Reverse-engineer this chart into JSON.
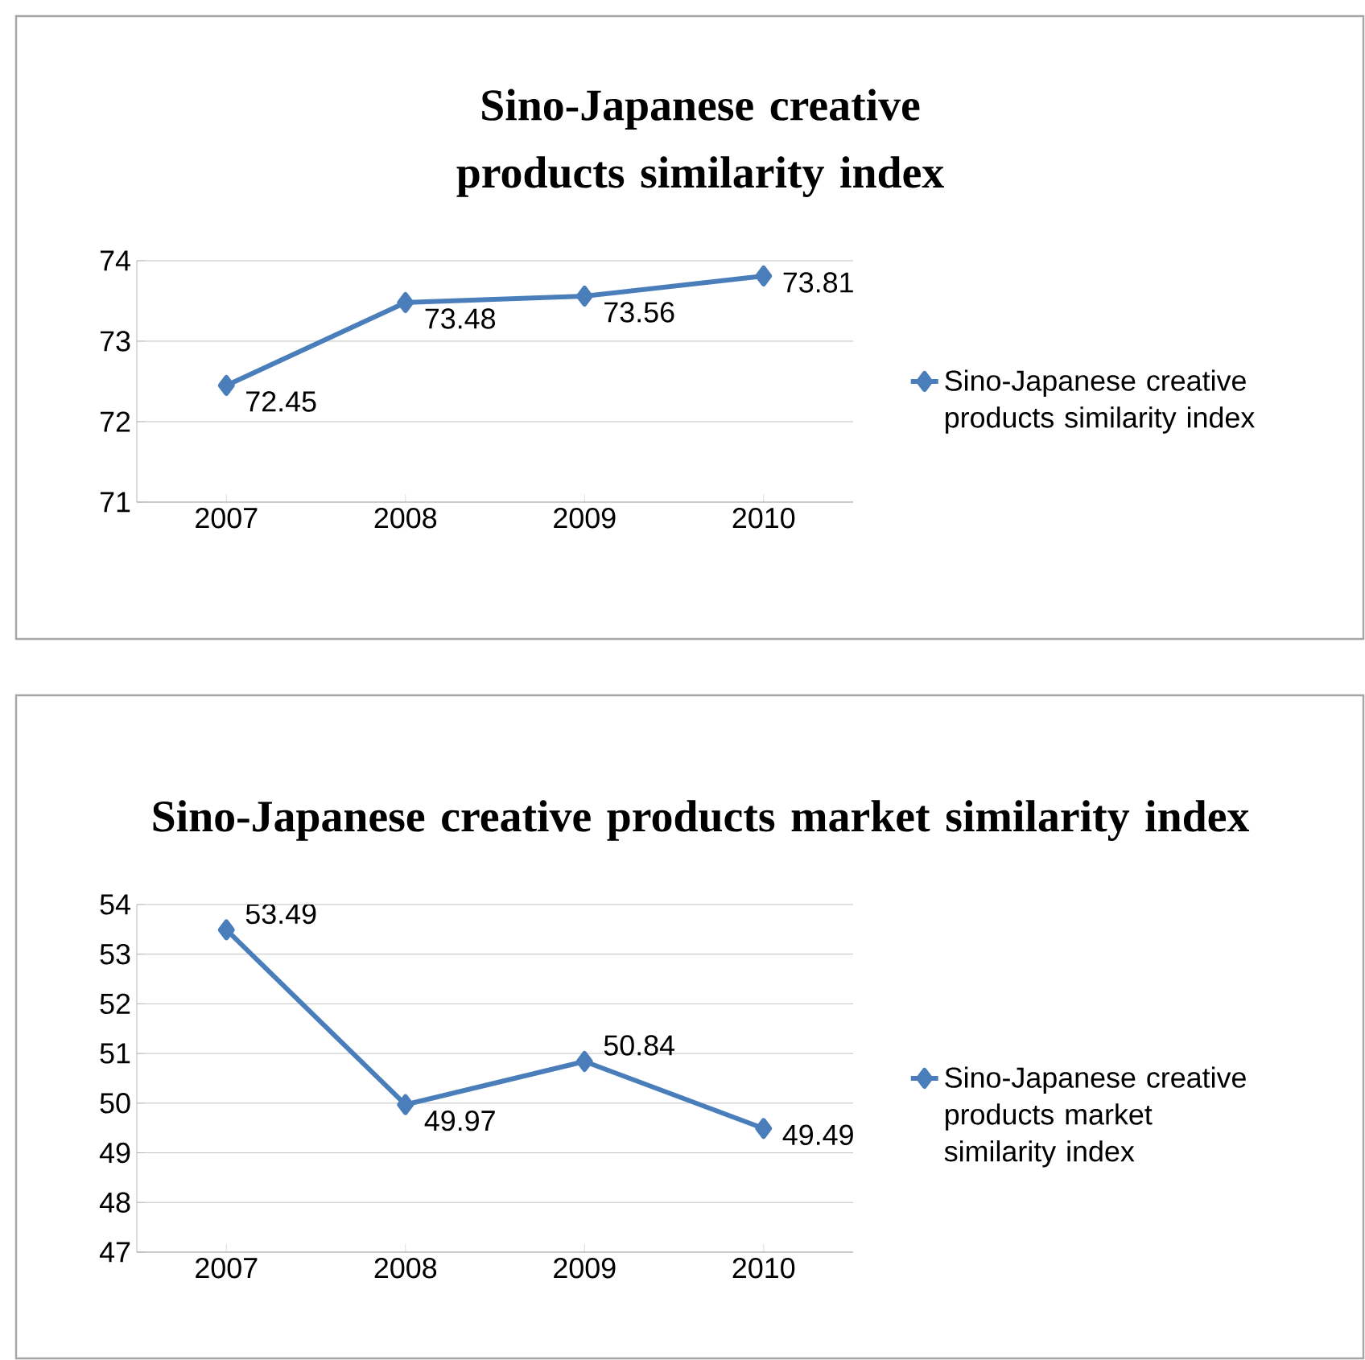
{
  "chart_data": [
    {
      "type": "line",
      "title": "Sino-Japanese creative products similarity index",
      "categories": [
        "2007",
        "2008",
        "2009",
        "2010"
      ],
      "series": [
        {
          "name": "Sino-Japanese creative products similarity index",
          "color": "#4a7ebb",
          "values": [
            72.45,
            73.48,
            73.56,
            73.81
          ]
        }
      ],
      "ylim": [
        71,
        74
      ],
      "yticks": [
        71,
        72,
        73,
        74
      ],
      "grid": "y",
      "legend": "right",
      "marker": "diamond",
      "line_style": "solid",
      "data_labels": true
    },
    {
      "type": "line",
      "title": "Sino-Japanese creative products market similarity index",
      "categories": [
        "2007",
        "2008",
        "2009",
        "2010"
      ],
      "series": [
        {
          "name": "Sino-Japanese creative products market similarity index",
          "color": "#4a7ebb",
          "values": [
            53.49,
            49.97,
            50.84,
            49.49
          ]
        }
      ],
      "ylim": [
        47,
        54
      ],
      "yticks": [
        47,
        48,
        49,
        50,
        51,
        52,
        53,
        54
      ],
      "grid": "y",
      "legend": "right",
      "marker": "diamond",
      "line_style": "solid",
      "data_labels": true
    }
  ]
}
